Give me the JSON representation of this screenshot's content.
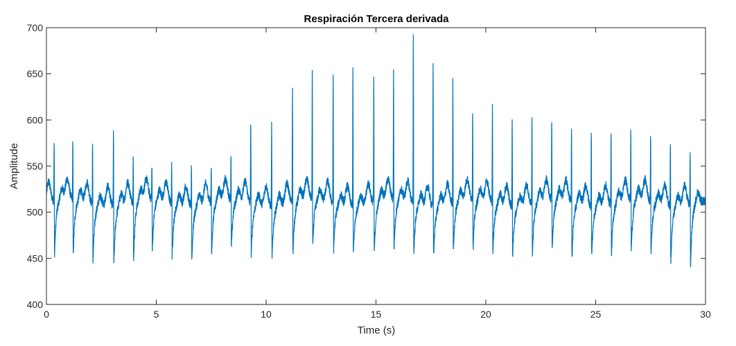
{
  "chart_data": {
    "type": "line",
    "title": "Respiración Tercera derivada",
    "xlabel": "Time (s)",
    "ylabel": "Amplitude",
    "xlim": [
      0,
      30
    ],
    "ylim": [
      400,
      700
    ],
    "xticks": [
      0,
      5,
      10,
      15,
      20,
      25,
      30
    ],
    "yticks": [
      400,
      450,
      500,
      550,
      600,
      650,
      700
    ],
    "grid": false,
    "legend": "none",
    "line_color": "#0072BD",
    "series": [
      {
        "beat_times": [
          0.35,
          1.2,
          2.1,
          3.05,
          3.95,
          4.8,
          5.7,
          6.6,
          7.5,
          8.4,
          9.3,
          10.25,
          11.2,
          12.1,
          13.05,
          13.95,
          14.9,
          15.8,
          16.7,
          17.6,
          18.5,
          19.4,
          20.3,
          21.2,
          22.1,
          23.0,
          23.9,
          24.8,
          25.7,
          26.6,
          27.5,
          28.4,
          29.3
        ],
        "peak_values": [
          572,
          575,
          573,
          590,
          555,
          548,
          552,
          555,
          550,
          555,
          600,
          597,
          635,
          649,
          648,
          659,
          643,
          647,
          691,
          667,
          641,
          607,
          615,
          602,
          601,
          597,
          592,
          590,
          588,
          585,
          583,
          580,
          565
        ],
        "trough_values": [
          445,
          443,
          441,
          439,
          442,
          448,
          445,
          447,
          446,
          450,
          445,
          447,
          445,
          452,
          451,
          450,
          446,
          447,
          446,
          448,
          449,
          448,
          447,
          448,
          447,
          447,
          440,
          449,
          448,
          447,
          447,
          442,
          436
        ],
        "baseline": 510
      }
    ]
  }
}
